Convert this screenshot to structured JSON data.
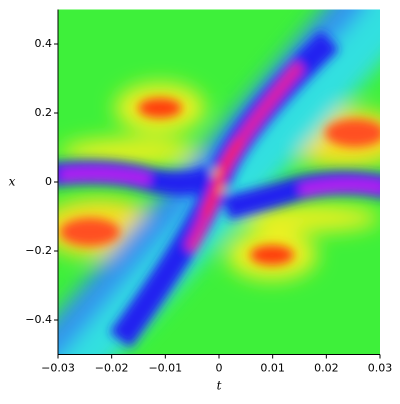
{
  "chart_data": {
    "type": "density",
    "x_label": "t",
    "y_label": "x",
    "xlim": [
      -0.03,
      0.03
    ],
    "ylim": [
      -0.5,
      0.5
    ],
    "xticks": [
      {
        "value": -0.03,
        "label": "−0.03"
      },
      {
        "value": -0.02,
        "label": "−0.02"
      },
      {
        "value": -0.01,
        "label": "−0.01"
      },
      0,
      0.01,
      0.02,
      0.03
    ],
    "yticks": [
      {
        "value": -0.4,
        "label": "−0.4"
      },
      {
        "value": -0.2,
        "label": "−0.2"
      },
      0,
      0.2,
      0.4
    ]
  }
}
